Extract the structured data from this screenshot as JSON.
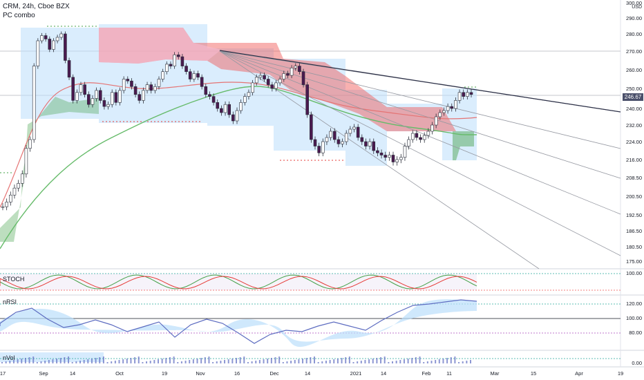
{
  "header": {
    "symbol_line": "CRM, 24h, Cboe BZX",
    "indicator": "PC combo"
  },
  "price_axis": {
    "currency": "USD",
    "ticks": [
      "300.00",
      "290.00",
      "280.00",
      "270.00",
      "260.00",
      "250.00",
      "240.00",
      "232.00",
      "224.00",
      "216.00",
      "208.50",
      "200.50",
      "192.50",
      "186.50",
      "180.50",
      "175.00"
    ],
    "last_price": "246.67"
  },
  "stoch_pane": {
    "label": "STOCH",
    "ticks": [
      "100.00"
    ]
  },
  "rsi_pane": {
    "label": "nRSI",
    "ticks": [
      "120.00",
      "100.00",
      "80.00"
    ]
  },
  "vol_pane": {
    "label": "nVol",
    "ticks": [
      "0.00"
    ]
  },
  "time_axis": [
    "17",
    "Sep",
    "14",
    "Oct",
    "19",
    "Nov",
    "16",
    "Dec",
    "14",
    "2021",
    "14",
    "Feb",
    "11",
    "Mar",
    "15",
    "Apr",
    "19"
  ],
  "colors": {
    "up_candle": "#ffffff",
    "down_candle": "#4a1a4f",
    "cloud_blue": "#bbdefb",
    "cloud_red": "#ef5350",
    "cloud_green": "#43a047",
    "ma_green": "#66bb6a",
    "ma_red": "#e57373",
    "trendline": "#2a2e45"
  },
  "chart_data": {
    "type": "candlestick",
    "title": "CRM, 24h, Cboe BZX",
    "ylabel": "USD",
    "ylim": [
      173,
      300
    ],
    "x_labels": [
      "17",
      "Sep",
      "14",
      "Oct",
      "19",
      "Nov",
      "16",
      "Dec",
      "14",
      "2021",
      "14",
      "Feb",
      "11",
      "Mar",
      "15",
      "Apr",
      "19"
    ],
    "last_price": 246.67,
    "closes": [
      196,
      198,
      201,
      204,
      206,
      210,
      221,
      225,
      262,
      276,
      279,
      277,
      271,
      276,
      278,
      280,
      265,
      256,
      244,
      248,
      252,
      247,
      242,
      245,
      249,
      244,
      241,
      242,
      248,
      243,
      249,
      255,
      254,
      251,
      247,
      244,
      249,
      252,
      249,
      251,
      255,
      259,
      263,
      262,
      268,
      267,
      262,
      259,
      255,
      258,
      256,
      251,
      247,
      246,
      243,
      240,
      238,
      242,
      237,
      234,
      239,
      243,
      246,
      248,
      253,
      256,
      257,
      255,
      252,
      250,
      253,
      255,
      258,
      257,
      261,
      262,
      259,
      252,
      237,
      225,
      222,
      219,
      224,
      226,
      229,
      225,
      223,
      224,
      228,
      230,
      231,
      226,
      224,
      222,
      224,
      220,
      219,
      218,
      217,
      218,
      215,
      216,
      217,
      222,
      225,
      228,
      226,
      225,
      227,
      229,
      232,
      236,
      238,
      239,
      241,
      240,
      244,
      248,
      246,
      248,
      247
    ]
  }
}
